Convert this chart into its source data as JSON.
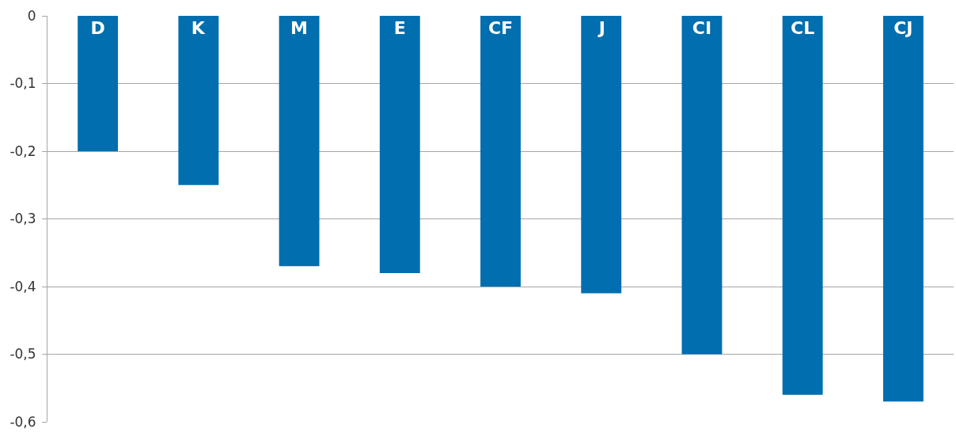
{
  "chart_data": {
    "type": "bar",
    "categories": [
      "D",
      "K",
      "M",
      "E",
      "CF",
      "J",
      "CI",
      "CL",
      "CJ"
    ],
    "values": [
      -0.2,
      -0.25,
      -0.37,
      -0.38,
      -0.4,
      -0.41,
      -0.5,
      -0.56,
      -0.57
    ],
    "color": "#006eaf",
    "ylim": [
      -0.6,
      0
    ],
    "yticks": [
      0,
      {
        "value": -0.1,
        "label": "-0,1"
      },
      {
        "value": -0.2,
        "label": "-0,2"
      },
      {
        "value": -0.3,
        "label": "-0,3"
      },
      {
        "value": -0.4,
        "label": "-0,4"
      },
      {
        "value": -0.5,
        "label": "-0,5"
      },
      {
        "value": -0.6,
        "label": "-0,6"
      }
    ],
    "grid": "y",
    "tick_labels": "y"
  }
}
